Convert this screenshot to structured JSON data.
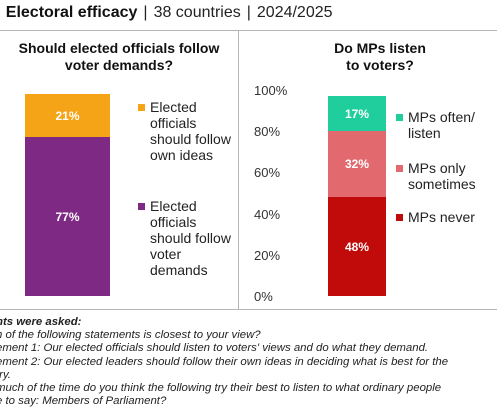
{
  "header": {
    "title": ": Electoral efficacy",
    "countries": "38 countries",
    "period": "2024/2025"
  },
  "chart_data": [
    {
      "type": "bar",
      "stacked": true,
      "title": "Should elected officials follow voter demands?",
      "series": [
        {
          "name": "Elected officials should follow voter demands",
          "value": 77,
          "label": "77%",
          "color": "#7e2a84"
        },
        {
          "name": "Elected officials should follow own ideas",
          "value": 21,
          "label": "21%",
          "color": "#f6a417"
        }
      ],
      "ylim": [
        0,
        100
      ]
    },
    {
      "type": "bar",
      "stacked": true,
      "title": "Do MPs listen to voters?",
      "yticks": [
        "0%",
        "20%",
        "40%",
        "60%",
        "80%",
        "100%"
      ],
      "ylim": [
        0,
        100
      ],
      "series": [
        {
          "name": "MPs never",
          "value": 48,
          "label": "48%",
          "color": "#c10b0b"
        },
        {
          "name": "MPs only sometimes",
          "value": 32,
          "label": "32%",
          "color": "#e26a6f"
        },
        {
          "name": "MPs often/always listen",
          "value": 17,
          "label": "17%",
          "color": "#1fce9c"
        }
      ]
    }
  ],
  "left_title_lines": [
    "Should elected officials follow",
    "voter demands?"
  ],
  "right_title_lines": [
    "Do MPs listen",
    "to voters?"
  ],
  "legend_left": [
    {
      "lines": [
        "Elected",
        "officials",
        "should follow",
        "own ideas"
      ],
      "color": "#f6a417"
    },
    {
      "lines": [
        "Elected",
        "officials",
        "should follow",
        "voter",
        "demands"
      ],
      "color": "#7e2a84"
    }
  ],
  "legend_right": [
    {
      "lines": [
        "MPs often/",
        "listen"
      ],
      "color": "#1fce9c"
    },
    {
      "lines": [
        "MPs only",
        "sometimes"
      ],
      "color": "#e26a6f"
    },
    {
      "lines": [
        "MPs never"
      ],
      "color": "#c10b0b"
    }
  ],
  "notes": [
    "nts were asked:",
    "h of the following statements is closest to your view?",
    "ement 1: Our elected officials should listen to voters' views and do what they demand.",
    "ement 2: Our elected leaders should follow their own ideas in deciding what is best for the",
    "try.",
    "much of the time do you think the following try their best to listen to what ordinary people",
    "e to say: Members of Parliament?"
  ]
}
